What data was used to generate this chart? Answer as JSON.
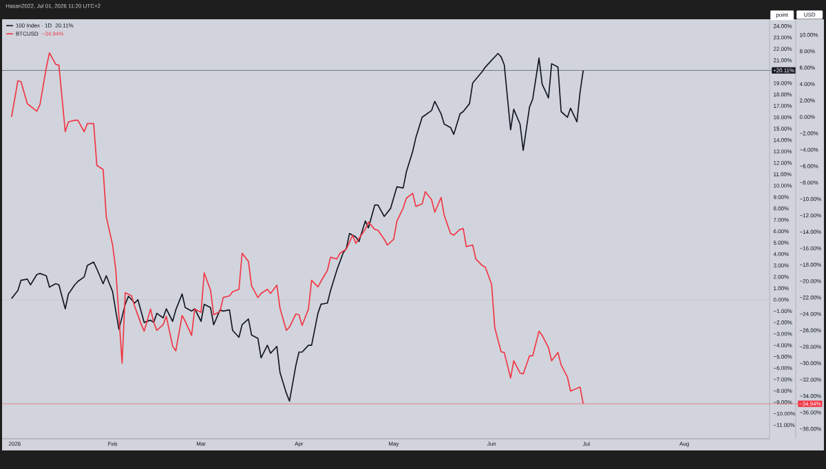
{
  "chart_data": {
    "type": "line",
    "xlim": [
      "2025-12-28",
      "2026-08-28"
    ],
    "xticks": [
      {
        "value": "2026-01-01",
        "label": "2026"
      },
      {
        "value": "2026-02-01",
        "label": "Feb"
      },
      {
        "value": "2026-03-01",
        "label": "Mar"
      },
      {
        "value": "2026-04-01",
        "label": "Apr"
      },
      {
        "value": "2026-05-01",
        "label": "May"
      },
      {
        "value": "2026-06-01",
        "label": "Jun"
      },
      {
        "value": "2026-07-01",
        "label": "Jul"
      },
      {
        "value": "2026-08-01",
        "label": "Aug"
      }
    ],
    "ylabel": "point",
    "y2label": "USD",
    "ylim": [
      -12.2,
      24.6
    ],
    "yticks": [
      {
        "value": -11,
        "label": "−11.00%"
      },
      {
        "value": -10,
        "label": "−10.00%"
      },
      {
        "value": -9,
        "label": "−9.00%"
      },
      {
        "value": -8,
        "label": "−8.00%"
      },
      {
        "value": -7,
        "label": "−7.00%"
      },
      {
        "value": -6,
        "label": "−6.00%"
      },
      {
        "value": -5,
        "label": "−5.00%"
      },
      {
        "value": -4,
        "label": "−4.00%"
      },
      {
        "value": -3,
        "label": "−3.00%"
      },
      {
        "value": -2,
        "label": "−2.00%"
      },
      {
        "value": -1,
        "label": "−1.00%"
      },
      {
        "value": 0,
        "label": "0.00%"
      },
      {
        "value": 1,
        "label": "1.00%"
      },
      {
        "value": 2,
        "label": "2.00%"
      },
      {
        "value": 3,
        "label": "3.00%"
      },
      {
        "value": 4,
        "label": "4.00%"
      },
      {
        "value": 5,
        "label": "5.00%"
      },
      {
        "value": 6,
        "label": "6.00%"
      },
      {
        "value": 7,
        "label": "7.00%"
      },
      {
        "value": 8,
        "label": "8.00%"
      },
      {
        "value": 9,
        "label": "9.00%"
      },
      {
        "value": 10,
        "label": "10.00%"
      },
      {
        "value": 11,
        "label": "11.00%"
      },
      {
        "value": 12,
        "label": "12.00%"
      },
      {
        "value": 13,
        "label": "13.00%"
      },
      {
        "value": 14,
        "label": "14.00%"
      },
      {
        "value": 15,
        "label": "15.00%"
      },
      {
        "value": 16,
        "label": "16.00%"
      },
      {
        "value": 17,
        "label": "17.00%"
      },
      {
        "value": 18,
        "label": "18.00%"
      },
      {
        "value": 19,
        "label": "19.00%"
      },
      {
        "value": 21,
        "label": "21.00%"
      },
      {
        "value": 22,
        "label": "22.00%"
      },
      {
        "value": 23,
        "label": "23.00%"
      },
      {
        "value": 24,
        "label": "24.00%"
      }
    ],
    "y2lim": [
      -39.2,
      11.9
    ],
    "y2ticks": [
      {
        "value": -38,
        "label": "−38.00%"
      },
      {
        "value": -36,
        "label": "−36.00%"
      },
      {
        "value": -34,
        "label": "−34.00%"
      },
      {
        "value": -32,
        "label": "−32.00%"
      },
      {
        "value": -30,
        "label": "−30.00%"
      },
      {
        "value": -28,
        "label": "−28.00%"
      },
      {
        "value": -26,
        "label": "−26.00%"
      },
      {
        "value": -24,
        "label": "−24.00%"
      },
      {
        "value": -22,
        "label": "−22.00%"
      },
      {
        "value": -20,
        "label": "−20.00%"
      },
      {
        "value": -18,
        "label": "−18.00%"
      },
      {
        "value": -16,
        "label": "−16.00%"
      },
      {
        "value": -14,
        "label": "−14.00%"
      },
      {
        "value": -12,
        "label": "−12.00%"
      },
      {
        "value": -10,
        "label": "−10.00%"
      },
      {
        "value": -8,
        "label": "−8.00%"
      },
      {
        "value": -6,
        "label": "−6.00%"
      },
      {
        "value": -4,
        "label": "−4.00%"
      },
      {
        "value": -2,
        "label": "−2.00%"
      },
      {
        "value": 0,
        "label": "0.00%"
      },
      {
        "value": 2,
        "label": "2.00%"
      },
      {
        "value": 4,
        "label": "4.00%"
      },
      {
        "value": 6,
        "label": "6.00%"
      },
      {
        "value": 8,
        "label": "8.00%"
      },
      {
        "value": 10,
        "label": "10.00%"
      }
    ],
    "legend": "top left",
    "annotations": [
      "20.11%",
      "−34.94%",
      "Hasan2022, Jul 01, 2026 11:20 UTC+2"
    ],
    "ref_lines": [
      {
        "axis": "y",
        "value": 0,
        "color": "#b8bcc6"
      },
      {
        "axis": "y",
        "value": 20.11,
        "label": "+20.11%",
        "color": "#131722"
      },
      {
        "axis": "y2",
        "value": -34.94,
        "label": "−34.94%",
        "color": "#f23645"
      }
    ],
    "series": [
      {
        "name": "100 Index · 1D",
        "color": "#131722",
        "x": [
          "2025-12-31",
          "2026-01-02",
          "2026-01-03",
          "2026-01-05",
          "2026-01-06",
          "2026-01-08",
          "2026-01-09",
          "2026-01-11",
          "2026-01-12",
          "2026-01-14",
          "2026-01-15",
          "2026-01-17",
          "2026-01-18",
          "2026-01-20",
          "2026-01-21",
          "2026-01-23",
          "2026-01-24",
          "2026-01-26",
          "2026-01-27",
          "2026-01-29",
          "2026-01-30",
          "2026-02-01",
          "2026-02-02",
          "2026-02-03",
          "2026-02-05",
          "2026-02-06",
          "2026-02-08",
          "2026-02-09",
          "2026-02-11",
          "2026-02-13",
          "2026-02-14",
          "2026-02-15",
          "2026-02-17",
          "2026-02-18",
          "2026-02-20",
          "2026-02-21",
          "2026-02-23",
          "2026-02-24",
          "2026-02-26",
          "2026-02-27",
          "2026-03-01",
          "2026-03-02",
          "2026-03-04",
          "2026-03-05",
          "2026-03-07",
          "2026-03-08",
          "2026-03-10",
          "2026-03-11",
          "2026-03-13",
          "2026-03-14",
          "2026-03-16",
          "2026-03-17",
          "2026-03-19",
          "2026-03-20",
          "2026-03-22",
          "2026-03-23",
          "2026-03-25",
          "2026-03-26",
          "2026-03-28",
          "2026-03-29",
          "2026-03-31",
          "2026-04-01",
          "2026-04-02",
          "2026-04-04",
          "2026-04-05",
          "2026-04-07",
          "2026-04-08",
          "2026-04-10",
          "2026-04-11",
          "2026-04-13",
          "2026-04-15",
          "2026-04-16",
          "2026-04-17",
          "2026-04-19",
          "2026-04-20",
          "2026-04-22",
          "2026-04-23",
          "2026-04-25",
          "2026-04-26",
          "2026-04-28",
          "2026-04-30",
          "2026-05-02",
          "2026-05-04",
          "2026-05-05",
          "2026-05-07",
          "2026-05-08",
          "2026-05-10",
          "2026-05-11",
          "2026-05-13",
          "2026-05-14",
          "2026-05-16",
          "2026-05-17",
          "2026-05-19",
          "2026-05-20",
          "2026-05-22",
          "2026-05-23",
          "2026-05-25",
          "2026-05-26",
          "2026-05-29",
          "2026-05-30",
          "2026-06-01",
          "2026-06-03",
          "2026-06-04",
          "2026-06-05",
          "2026-06-07",
          "2026-06-08",
          "2026-06-10",
          "2026-06-11",
          "2026-06-13",
          "2026-06-14",
          "2026-06-16",
          "2026-06-17",
          "2026-06-19",
          "2026-06-20",
          "2026-06-22",
          "2026-06-23",
          "2026-06-25",
          "2026-06-26",
          "2026-06-28",
          "2026-06-29",
          "2026-06-30"
        ],
        "values": [
          0.1,
          0.8,
          1.7,
          1.8,
          1.3,
          2.2,
          2.3,
          2.1,
          1.1,
          1.4,
          1.3,
          -0.8,
          0.5,
          1.3,
          1.6,
          2.0,
          3.0,
          3.3,
          2.7,
          1.4,
          2.1,
          0.7,
          -1.0,
          -2.6,
          -0.4,
          0.3,
          -0.3,
          0.0,
          -2.0,
          -1.8,
          -2.0,
          -1.2,
          -1.6,
          -0.8,
          -1.9,
          -0.9,
          0.5,
          -0.7,
          -1.0,
          -0.8,
          -1.9,
          -0.4,
          -0.7,
          -2.2,
          -0.9,
          -1.0,
          -0.9,
          -2.7,
          -3.3,
          -2.2,
          -1.7,
          -3.1,
          -3.4,
          -5.1,
          -4.0,
          -4.7,
          -4.1,
          -6.4,
          -8.2,
          -8.9,
          -5.8,
          -4.6,
          -4.6,
          -4.0,
          -4.0,
          -1.2,
          -0.4,
          -0.3,
          0.8,
          2.6,
          4.1,
          4.5,
          5.8,
          5.5,
          5.1,
          6.9,
          6.3,
          8.3,
          8.3,
          7.3,
          8.0,
          9.9,
          9.8,
          11.2,
          13.0,
          14.2,
          16.0,
          16.2,
          16.6,
          17.4,
          16.3,
          15.4,
          15.1,
          14.5,
          16.3,
          16.5,
          17.2,
          19.0,
          20.0,
          20.4,
          21.0,
          21.6,
          21.3,
          20.6,
          14.9,
          16.7,
          15.4,
          13.1,
          16.9,
          17.6,
          21.2,
          18.9,
          17.7,
          20.7,
          20.4,
          16.5,
          16.0,
          16.8,
          15.6,
          18.2,
          20.11
        ]
      },
      {
        "name": "BTCUSD",
        "color": "#f23645",
        "axis": "y2",
        "x": [
          "2025-12-31",
          "2026-01-02",
          "2026-01-03",
          "2026-01-05",
          "2026-01-06",
          "2026-01-08",
          "2026-01-09",
          "2026-01-11",
          "2026-01-12",
          "2026-01-14",
          "2026-01-15",
          "2026-01-17",
          "2026-01-18",
          "2026-01-20",
          "2026-01-21",
          "2026-01-23",
          "2026-01-24",
          "2026-01-26",
          "2026-01-27",
          "2026-01-29",
          "2026-01-30",
          "2026-02-01",
          "2026-02-02",
          "2026-02-04",
          "2026-02-05",
          "2026-02-07",
          "2026-02-08",
          "2026-02-10",
          "2026-02-11",
          "2026-02-13",
          "2026-02-14",
          "2026-02-15",
          "2026-02-17",
          "2026-02-18",
          "2026-02-20",
          "2026-02-21",
          "2026-02-23",
          "2026-02-24",
          "2026-02-26",
          "2026-02-27",
          "2026-03-01",
          "2026-03-02",
          "2026-03-04",
          "2026-03-05",
          "2026-03-07",
          "2026-03-08",
          "2026-03-10",
          "2026-03-11",
          "2026-03-13",
          "2026-03-14",
          "2026-03-16",
          "2026-03-17",
          "2026-03-19",
          "2026-03-20",
          "2026-03-22",
          "2026-03-23",
          "2026-03-25",
          "2026-03-26",
          "2026-03-28",
          "2026-03-29",
          "2026-03-31",
          "2026-04-01",
          "2026-04-02",
          "2026-04-04",
          "2026-04-05",
          "2026-04-07",
          "2026-04-08",
          "2026-04-10",
          "2026-04-11",
          "2026-04-13",
          "2026-04-14",
          "2026-04-16",
          "2026-04-18",
          "2026-04-19",
          "2026-04-20",
          "2026-04-22",
          "2026-04-23",
          "2026-04-25",
          "2026-04-26",
          "2026-04-28",
          "2026-04-29",
          "2026-05-01",
          "2026-05-02",
          "2026-05-04",
          "2026-05-05",
          "2026-05-07",
          "2026-05-08",
          "2026-05-10",
          "2026-05-11",
          "2026-05-13",
          "2026-05-14",
          "2026-05-16",
          "2026-05-17",
          "2026-05-19",
          "2026-05-20",
          "2026-05-22",
          "2026-05-23",
          "2026-05-24",
          "2026-05-26",
          "2026-05-27",
          "2026-05-29",
          "2026-05-30",
          "2026-06-01",
          "2026-06-02",
          "2026-06-04",
          "2026-06-05",
          "2026-06-07",
          "2026-06-08",
          "2026-06-10",
          "2026-06-11",
          "2026-06-13",
          "2026-06-14",
          "2026-06-16",
          "2026-06-17",
          "2026-06-19",
          "2026-06-20",
          "2026-06-22",
          "2026-06-23",
          "2026-06-25",
          "2026-06-26",
          "2026-06-29",
          "2026-06-30"
        ],
        "values": [
          0.0,
          4.4,
          4.3,
          1.6,
          1.3,
          0.7,
          1.5,
          6.0,
          7.8,
          6.4,
          6.3,
          -1.8,
          -0.6,
          -0.4,
          -0.4,
          -1.8,
          -0.8,
          -0.8,
          -5.9,
          -6.4,
          -12.2,
          -15.6,
          -18.6,
          -30.0,
          -21.4,
          -21.8,
          -23.1,
          -25.2,
          -26.1,
          -23.4,
          -25.0,
          -26.0,
          -25.3,
          -24.3,
          -27.9,
          -28.5,
          -24.2,
          -24.9,
          -26.6,
          -23.4,
          -23.8,
          -19.0,
          -21.1,
          -24.1,
          -23.7,
          -22.0,
          -21.8,
          -21.3,
          -21.0,
          -16.6,
          -17.6,
          -20.6,
          -22.0,
          -21.5,
          -21.0,
          -21.5,
          -20.5,
          -23.3,
          -26.0,
          -25.6,
          -24.0,
          -24.1,
          -25.4,
          -23.4,
          -19.9,
          -20.7,
          -20.0,
          -18.7,
          -17.1,
          -17.3,
          -16.6,
          -16.1,
          -14.4,
          -15.4,
          -14.8,
          -13.7,
          -12.8,
          -13.7,
          -13.8,
          -14.9,
          -15.6,
          -14.9,
          -12.7,
          -11.1,
          -9.9,
          -9.3,
          -10.9,
          -10.6,
          -9.1,
          -10.1,
          -11.6,
          -9.8,
          -12.0,
          -14.2,
          -14.4,
          -13.7,
          -13.6,
          -15.8,
          -15.6,
          -17.3,
          -18.1,
          -18.3,
          -20.4,
          -25.7,
          -28.6,
          -28.7,
          -31.8,
          -29.7,
          -31.2,
          -31.3,
          -29.1,
          -29.1,
          -26.1,
          -26.6,
          -28.1,
          -29.7,
          -28.7,
          -30.2,
          -31.7,
          -33.4,
          -32.9,
          -34.94
        ]
      }
    ]
  }
}
